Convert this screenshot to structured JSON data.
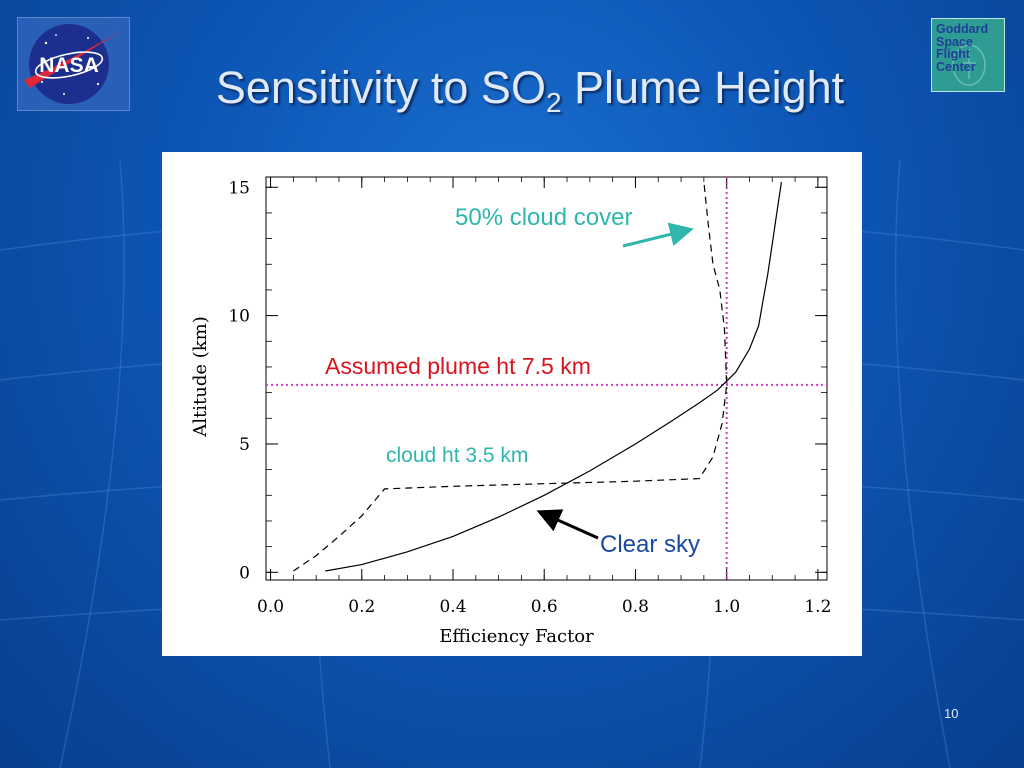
{
  "slide": {
    "title_main": "Sensitivity to SO",
    "title_sub": "2",
    "title_tail": " Plume Height",
    "page_number": "10"
  },
  "logos": {
    "nasa_text": "NASA",
    "gsfc_text": "Goddard\nSpace\nFlight\nCenter"
  },
  "annotations": {
    "cloud_cover": "50% cloud cover",
    "plume_height": "Assumed plume ht 7.5 km",
    "cloud_height": "cloud ht 3.5 km",
    "clear_sky": "Clear sky"
  },
  "colors": {
    "teal_annotation": "#2fb6ad",
    "red_annotation": "#d8141e",
    "blue_annotation": "#1a4aa0",
    "reference_lines": "#d23cc8"
  },
  "chart_data": {
    "type": "line",
    "title": "",
    "xlabel": "Efficiency Factor",
    "ylabel": "Altitude  (km)",
    "xlim": [
      -0.01,
      1.22
    ],
    "ylim": [
      -0.3,
      15.4
    ],
    "xticks": [
      0.0,
      0.2,
      0.4,
      0.6,
      0.8,
      1.0,
      1.2
    ],
    "xtick_labels": [
      "0.0",
      "0.2",
      "0.4",
      "0.6",
      "0.8",
      "1.0",
      "1.2"
    ],
    "yticks": [
      0,
      5,
      10,
      15
    ],
    "ytick_labels": [
      "0",
      "5",
      "10",
      "15"
    ],
    "grid": false,
    "reference_lines": {
      "x": 1.0,
      "y": 7.3
    },
    "series": [
      {
        "style": "solid",
        "points": [
          [
            0.12,
            0.05
          ],
          [
            0.2,
            0.3
          ],
          [
            0.3,
            0.8
          ],
          [
            0.4,
            1.4
          ],
          [
            0.5,
            2.15
          ],
          [
            0.6,
            3.0
          ],
          [
            0.7,
            3.95
          ],
          [
            0.8,
            5.0
          ],
          [
            0.88,
            5.9
          ],
          [
            0.94,
            6.6
          ],
          [
            0.98,
            7.1
          ],
          [
            1.02,
            7.8
          ],
          [
            1.05,
            8.7
          ],
          [
            1.07,
            9.6
          ],
          [
            1.08,
            10.6
          ],
          [
            1.09,
            11.6
          ],
          [
            1.1,
            12.8
          ],
          [
            1.11,
            14.0
          ],
          [
            1.12,
            15.2
          ]
        ]
      },
      {
        "style": "dashed",
        "points": [
          [
            0.05,
            0.05
          ],
          [
            0.1,
            0.65
          ],
          [
            0.15,
            1.4
          ],
          [
            0.2,
            2.2
          ],
          [
            0.25,
            3.25
          ],
          [
            0.4,
            3.35
          ],
          [
            0.6,
            3.45
          ],
          [
            0.8,
            3.55
          ],
          [
            0.94,
            3.65
          ],
          [
            0.97,
            4.5
          ],
          [
            0.99,
            5.8
          ],
          [
            1.0,
            7.3
          ],
          [
            0.995,
            9.5
          ],
          [
            0.985,
            11.0
          ],
          [
            0.97,
            12.0
          ],
          [
            0.96,
            13.5
          ],
          [
            0.95,
            15.2
          ]
        ]
      }
    ]
  }
}
